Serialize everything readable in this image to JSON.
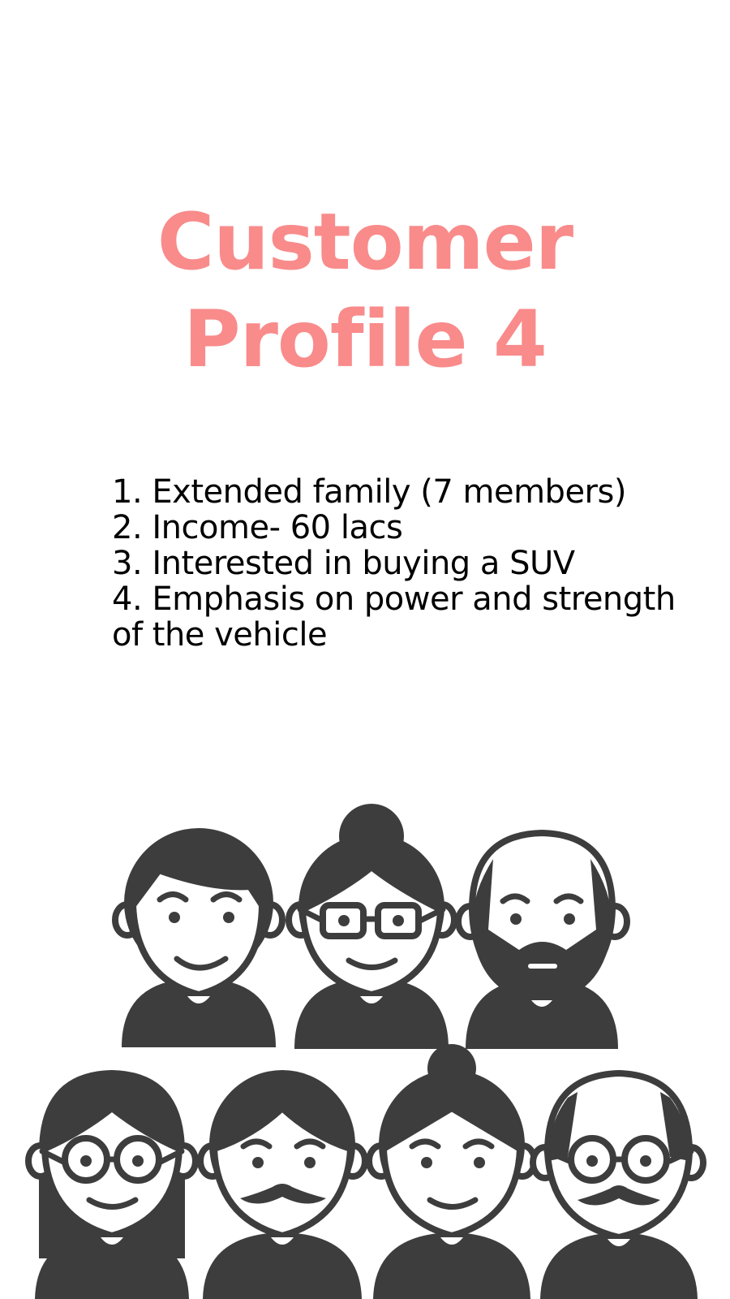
{
  "title": {
    "line1": "Customer",
    "line2": "Profile 4"
  },
  "items": [
    "1. Extended family (7 members)",
    "2. Income- 60 lacs",
    "3. Interested in buying a SUV",
    "4. Emphasis on power and strength of the vehicle"
  ],
  "colors": {
    "title": "#f98b8b",
    "text": "#000000",
    "illustration": "#3d3d3d",
    "background": "#ffffff"
  },
  "illustration": {
    "icon": "family-group-icon",
    "members": [
      "young-man-icon",
      "grandmother-icon",
      "bearded-man-icon",
      "girl-with-glasses-icon",
      "mustache-man-icon",
      "young-woman-icon",
      "grandfather-icon"
    ]
  }
}
